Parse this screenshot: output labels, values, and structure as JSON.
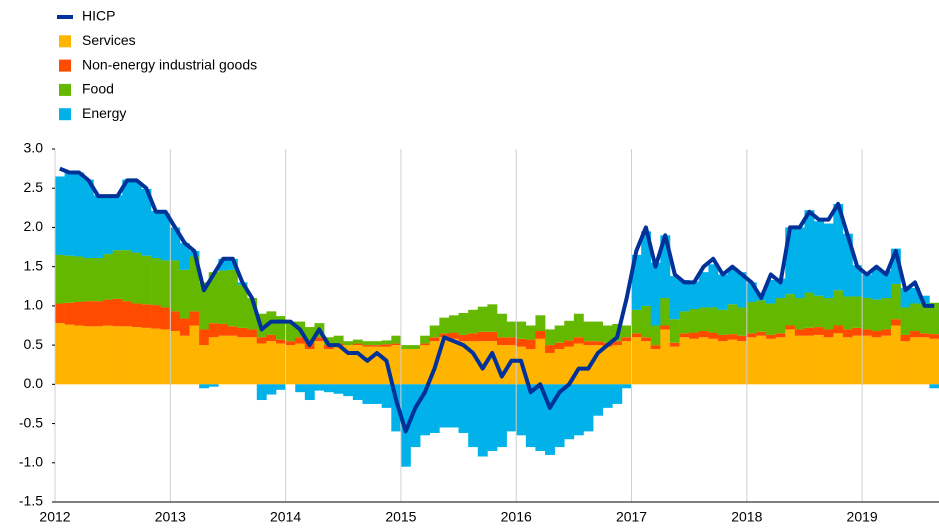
{
  "chart_data": {
    "type": "bar",
    "stacked": true,
    "categories": [
      "2012",
      null,
      null,
      null,
      null,
      null,
      null,
      null,
      null,
      null,
      null,
      null,
      "2013",
      null,
      null,
      null,
      null,
      null,
      null,
      null,
      null,
      null,
      null,
      null,
      "2014",
      null,
      null,
      null,
      null,
      null,
      null,
      null,
      null,
      null,
      null,
      null,
      "2015",
      null,
      null,
      null,
      null,
      null,
      null,
      null,
      null,
      null,
      null,
      null,
      "2016",
      null,
      null,
      null,
      null,
      null,
      null,
      null,
      null,
      null,
      null,
      null,
      "2017",
      null,
      null,
      null,
      null,
      null,
      null,
      null,
      null,
      null,
      null,
      null,
      "2018",
      null,
      null,
      null,
      null,
      null,
      null,
      null,
      null,
      null,
      null,
      null,
      "2019",
      null,
      null,
      null,
      null,
      null,
      null,
      null
    ],
    "series": [
      {
        "name": "HICP",
        "type": "line",
        "color": "#003299",
        "values": [
          2.75,
          2.7,
          2.7,
          2.6,
          2.4,
          2.4,
          2.4,
          2.6,
          2.6,
          2.5,
          2.2,
          2.2,
          2.0,
          1.8,
          1.7,
          1.2,
          1.4,
          1.6,
          1.6,
          1.3,
          1.1,
          0.7,
          0.8,
          0.8,
          0.8,
          0.7,
          0.5,
          0.7,
          0.5,
          0.5,
          0.4,
          0.4,
          0.3,
          0.4,
          0.3,
          -0.2,
          -0.6,
          -0.3,
          -0.1,
          0.2,
          0.6,
          0.55,
          0.5,
          0.4,
          0.2,
          0.4,
          0.1,
          0.3,
          0.3,
          -0.1,
          0.0,
          -0.3,
          -0.1,
          0.0,
          0.2,
          0.2,
          0.4,
          0.5,
          0.6,
          1.1,
          1.7,
          2.0,
          1.5,
          1.9,
          1.4,
          1.3,
          1.3,
          1.5,
          1.6,
          1.4,
          1.5,
          1.4,
          1.3,
          1.1,
          1.4,
          1.3,
          2.0,
          2.0,
          2.2,
          2.1,
          2.1,
          2.3,
          1.9,
          1.5,
          1.4,
          1.5,
          1.4,
          1.7,
          1.2,
          1.3,
          1.0,
          1.0
        ]
      },
      {
        "name": "Services",
        "color": "#ffb400",
        "values": [
          0.78,
          0.76,
          0.75,
          0.74,
          0.74,
          0.75,
          0.74,
          0.74,
          0.73,
          0.72,
          0.71,
          0.7,
          0.68,
          0.62,
          0.75,
          0.5,
          0.6,
          0.62,
          0.62,
          0.6,
          0.6,
          0.52,
          0.55,
          0.52,
          0.5,
          0.52,
          0.45,
          0.55,
          0.45,
          0.48,
          0.5,
          0.5,
          0.48,
          0.48,
          0.48,
          0.5,
          0.45,
          0.45,
          0.5,
          0.55,
          0.6,
          0.58,
          0.55,
          0.55,
          0.55,
          0.55,
          0.5,
          0.5,
          0.48,
          0.45,
          0.58,
          0.4,
          0.45,
          0.48,
          0.52,
          0.5,
          0.5,
          0.48,
          0.5,
          0.55,
          0.6,
          0.55,
          0.45,
          0.7,
          0.48,
          0.6,
          0.58,
          0.6,
          0.58,
          0.55,
          0.57,
          0.55,
          0.6,
          0.62,
          0.58,
          0.6,
          0.7,
          0.62,
          0.62,
          0.63,
          0.6,
          0.65,
          0.6,
          0.62,
          0.62,
          0.6,
          0.62,
          0.75,
          0.55,
          0.6,
          0.6,
          0.58
        ]
      },
      {
        "name": "Non-energy industrial goods",
        "color": "#ff4b00",
        "values": [
          0.25,
          0.28,
          0.3,
          0.32,
          0.32,
          0.33,
          0.35,
          0.32,
          0.3,
          0.3,
          0.3,
          0.28,
          0.25,
          0.22,
          0.18,
          0.2,
          0.18,
          0.15,
          0.12,
          0.12,
          0.1,
          0.08,
          0.08,
          0.05,
          0.05,
          0.08,
          0.08,
          0.05,
          0.05,
          0.04,
          0.0,
          0.02,
          0.02,
          0.02,
          0.03,
          0.02,
          0.0,
          0.0,
          0.02,
          0.05,
          0.05,
          0.08,
          0.08,
          0.1,
          0.12,
          0.12,
          0.1,
          0.1,
          0.1,
          0.12,
          0.1,
          0.1,
          0.08,
          0.08,
          0.08,
          0.05,
          0.05,
          0.05,
          0.05,
          0.05,
          0.05,
          0.05,
          0.05,
          0.05,
          0.05,
          0.05,
          0.08,
          0.08,
          0.08,
          0.08,
          0.07,
          0.07,
          0.05,
          0.05,
          0.05,
          0.05,
          0.05,
          0.08,
          0.1,
          0.1,
          0.1,
          0.1,
          0.1,
          0.1,
          0.08,
          0.08,
          0.08,
          0.08,
          0.08,
          0.08,
          0.05,
          0.06
        ]
      },
      {
        "name": "Food",
        "color": "#65b800",
        "values": [
          0.62,
          0.6,
          0.58,
          0.55,
          0.55,
          0.58,
          0.62,
          0.65,
          0.65,
          0.62,
          0.6,
          0.6,
          0.65,
          0.62,
          0.7,
          0.6,
          0.65,
          0.68,
          0.72,
          0.55,
          0.4,
          0.3,
          0.3,
          0.3,
          0.25,
          0.2,
          0.2,
          0.18,
          0.1,
          0.1,
          0.05,
          0.05,
          0.05,
          0.05,
          0.05,
          0.1,
          0.05,
          0.05,
          0.1,
          0.15,
          0.2,
          0.22,
          0.28,
          0.3,
          0.32,
          0.35,
          0.3,
          0.2,
          0.22,
          0.18,
          0.2,
          0.2,
          0.22,
          0.25,
          0.3,
          0.25,
          0.25,
          0.22,
          0.22,
          0.15,
          0.3,
          0.4,
          0.25,
          0.35,
          0.3,
          0.28,
          0.3,
          0.3,
          0.32,
          0.32,
          0.38,
          0.36,
          0.4,
          0.4,
          0.4,
          0.45,
          0.4,
          0.4,
          0.45,
          0.4,
          0.4,
          0.45,
          0.42,
          0.4,
          0.4,
          0.4,
          0.4,
          0.45,
          0.35,
          0.35,
          0.38,
          0.4
        ]
      },
      {
        "name": "Energy",
        "color": "#00b1ea",
        "values": [
          1.0,
          1.06,
          1.07,
          1.0,
          0.8,
          0.75,
          0.7,
          0.9,
          0.9,
          0.85,
          0.6,
          0.6,
          0.42,
          0.34,
          0.07,
          -0.05,
          -0.03,
          0.15,
          0.14,
          0.03,
          0.0,
          -0.2,
          -0.13,
          -0.07,
          0.0,
          -0.1,
          -0.2,
          -0.08,
          -0.1,
          -0.12,
          -0.15,
          -0.2,
          -0.25,
          -0.25,
          -0.3,
          -0.6,
          -1.05,
          -0.8,
          -0.65,
          -0.62,
          -0.55,
          -0.55,
          -0.62,
          -0.8,
          -0.92,
          -0.85,
          -0.8,
          -0.6,
          -0.65,
          -0.8,
          -0.85,
          -0.9,
          -0.8,
          -0.7,
          -0.65,
          -0.6,
          -0.4,
          -0.3,
          -0.25,
          -0.05,
          0.7,
          0.95,
          0.8,
          0.8,
          0.55,
          0.4,
          0.35,
          0.45,
          0.55,
          0.45,
          0.45,
          0.45,
          0.25,
          0.1,
          0.3,
          0.25,
          0.85,
          0.9,
          1.05,
          0.95,
          0.95,
          1.1,
          0.8,
          0.4,
          0.3,
          0.4,
          0.35,
          0.45,
          0.25,
          0.2,
          0.1,
          -0.05
        ]
      }
    ],
    "ylim": [
      -1.5,
      3.0
    ],
    "yticks": [
      {
        "value": 3,
        "label": "3.0"
      },
      2.5,
      {
        "value": 2,
        "label": "2.0"
      },
      1.5,
      {
        "value": 1,
        "label": "1.0"
      },
      0.5,
      {
        "value": 0,
        "label": "0.0"
      },
      -0.5,
      {
        "value": -1,
        "label": "-1.0"
      },
      -1.5
    ],
    "grid": true,
    "legend": "top-left"
  }
}
